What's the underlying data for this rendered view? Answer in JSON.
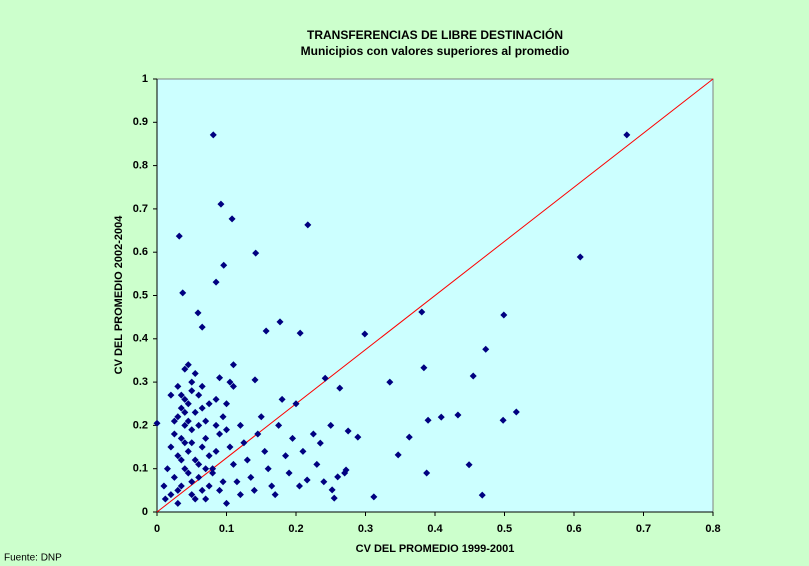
{
  "chart_data": {
    "type": "scatter",
    "title": "TRANSFERENCIAS DE LIBRE DESTINACIÓN",
    "subtitle": "Municipios con valores superiores al promedio",
    "x_label": "CV DEL PROMEDIO 1999-2001",
    "y_label": "CV DEL PROMEDIO 2002-2004",
    "source": "Fuente: DNP",
    "color": "#000080",
    "x": [
      0.081,
      0.676,
      0.092,
      0.032,
      0.108,
      0.217,
      0.142,
      0.096,
      0.609,
      0.085,
      0.037,
      0.381,
      0.499,
      0.059,
      0.065,
      0.157,
      0.177,
      0.206,
      0.299,
      0.473,
      0.384,
      0.335,
      0.455,
      0.141,
      0.242,
      0.263,
      0.433,
      0.498,
      0.517,
      0.409,
      0.39,
      0.275,
      0.289,
      0.363,
      0.347,
      0.449,
      0.388,
      0.312,
      0.468,
      0.272,
      0.26,
      0.252,
      0.255,
      0.235,
      0.216,
      0,
      0.03,
      0.035,
      0.04,
      0.045,
      0.05,
      0.04,
      0.045,
      0.05,
      0.035,
      0.03,
      0.025,
      0.02,
      0.015,
      0.01,
      0.012,
      0.02,
      0.025,
      0.03,
      0.035,
      0.04,
      0.045,
      0.05,
      0.055,
      0.06,
      0.065,
      0.07,
      0.075,
      0.08,
      0.085,
      0.09,
      0.095,
      0.1,
      0.105,
      0.11,
      0.115,
      0.12,
      0.06,
      0.065,
      0.07,
      0.075,
      0.08,
      0.085,
      0.09,
      0.06,
      0.055,
      0.05,
      0.045,
      0.04,
      0.035,
      0.03,
      0.05,
      0.055,
      0.06,
      0.065,
      0.07,
      0.075,
      0.1,
      0.105,
      0.11,
      0.12,
      0.125,
      0.13,
      0.135,
      0.14,
      0.145,
      0.15,
      0.155,
      0.16,
      0.165,
      0.17,
      0.175,
      0.18,
      0.185,
      0.19,
      0.195,
      0.2,
      0.205,
      0.21,
      0.225,
      0.23,
      0.24,
      0.25,
      0.27,
      0.02,
      0.03,
      0.04,
      0.025,
      0.045,
      0.05,
      0.09,
      0.1,
      0.095,
      0.11,
      0.085,
      0.07,
      0.065,
      0.055,
      0.04,
      0.035
    ],
    "values": [
      0.871,
      0.871,
      0.711,
      0.637,
      0.677,
      0.663,
      0.598,
      0.57,
      0.589,
      0.531,
      0.506,
      0.462,
      0.455,
      0.46,
      0.427,
      0.418,
      0.439,
      0.413,
      0.411,
      0.376,
      0.333,
      0.3,
      0.314,
      0.305,
      0.309,
      0.286,
      0.224,
      0.212,
      0.231,
      0.219,
      0.212,
      0.187,
      0.173,
      0.173,
      0.132,
      0.109,
      0.09,
      0.035,
      0.039,
      0.097,
      0.081,
      0.051,
      0.032,
      0.159,
      0.074,
      0.205,
      0.05,
      0.12,
      0.2,
      0.25,
      0.28,
      0.33,
      0.34,
      0.3,
      0.27,
      0.22,
      0.18,
      0.15,
      0.1,
      0.06,
      0.03,
      0.04,
      0.08,
      0.13,
      0.17,
      0.23,
      0.21,
      0.16,
      0.12,
      0.08,
      0.05,
      0.03,
      0.06,
      0.1,
      0.14,
      0.18,
      0.22,
      0.19,
      0.15,
      0.11,
      0.07,
      0.04,
      0.2,
      0.24,
      0.17,
      0.13,
      0.09,
      0.26,
      0.31,
      0.27,
      0.23,
      0.19,
      0.14,
      0.1,
      0.06,
      0.02,
      0.07,
      0.03,
      0.11,
      0.15,
      0.21,
      0.25,
      0.25,
      0.3,
      0.34,
      0.2,
      0.16,
      0.12,
      0.08,
      0.05,
      0.18,
      0.22,
      0.14,
      0.1,
      0.06,
      0.04,
      0.2,
      0.26,
      0.13,
      0.09,
      0.17,
      0.25,
      0.06,
      0.14,
      0.18,
      0.11,
      0.07,
      0.2,
      0.09,
      0.27,
      0.29,
      0.26,
      0.21,
      0.09,
      0.04,
      0.05,
      0.02,
      0.07,
      0.29,
      0.2,
      0.1,
      0.29,
      0.32,
      0.16,
      0.24
    ],
    "line": {
      "x": [
        0,
        0.8
      ],
      "values": [
        0,
        1
      ],
      "color": "#ff0000"
    },
    "xlim": [
      0,
      0.8
    ],
    "xticks": [
      0,
      0.1,
      0.2,
      0.3,
      0.4,
      0.5,
      0.6,
      0.7,
      0.8
    ],
    "ylim": [
      0,
      1
    ],
    "yticks": [
      0,
      0.1,
      0.2,
      0.3,
      0.4,
      0.5,
      0.6,
      0.7,
      0.8,
      0.9,
      1
    ]
  }
}
